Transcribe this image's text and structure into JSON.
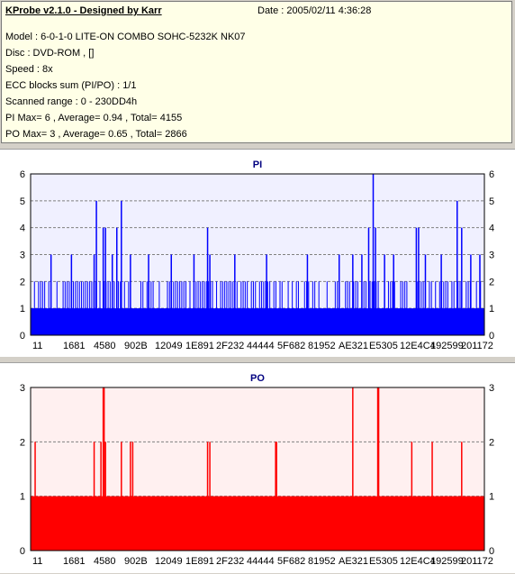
{
  "header": {
    "title": "KProbe v2.1.0 - Designed by Karr",
    "date": "Date : 2005/02/11 4:36:28",
    "lines": [
      "Model : 6-0-1-0 LITE-ON COMBO SOHC-5232K NK07",
      "Disc : DVD-ROM ,  []",
      "Speed : 8x",
      "ECC blocks sum (PI/PO) : 1/1",
      "Scanned range : 0 - 230DD4h",
      "PI Max= 6 , Average= 0.94 , Total= 4155",
      "PO Max= 3 , Average= 0.65 , Total= 2866"
    ]
  },
  "chart_data": [
    {
      "type": "bar",
      "title": "PI",
      "color": "#0000ff",
      "ylim": [
        0,
        6
      ],
      "yticks": [
        0,
        1,
        2,
        3,
        4,
        5,
        6
      ],
      "grid": true,
      "x_ticks": [
        "11",
        "1681",
        "4580",
        "902B",
        "12049",
        "1E891",
        "2F232",
        "44444",
        "5F682",
        "81952",
        "AE321",
        "E5305",
        "12E4C4",
        "192599",
        "201172"
      ],
      "baseline": 1,
      "base_band": 2,
      "spikes": [
        {
          "x": 0.045,
          "v": 3
        },
        {
          "x": 0.09,
          "v": 3
        },
        {
          "x": 0.14,
          "v": 3
        },
        {
          "x": 0.145,
          "v": 5
        },
        {
          "x": 0.16,
          "v": 4
        },
        {
          "x": 0.165,
          "v": 4
        },
        {
          "x": 0.18,
          "v": 3
        },
        {
          "x": 0.19,
          "v": 4
        },
        {
          "x": 0.2,
          "v": 5
        },
        {
          "x": 0.22,
          "v": 3
        },
        {
          "x": 0.26,
          "v": 3
        },
        {
          "x": 0.31,
          "v": 3
        },
        {
          "x": 0.36,
          "v": 3
        },
        {
          "x": 0.39,
          "v": 4
        },
        {
          "x": 0.395,
          "v": 3
        },
        {
          "x": 0.45,
          "v": 3
        },
        {
          "x": 0.52,
          "v": 3
        },
        {
          "x": 0.61,
          "v": 3
        },
        {
          "x": 0.68,
          "v": 3
        },
        {
          "x": 0.71,
          "v": 3
        },
        {
          "x": 0.73,
          "v": 3
        },
        {
          "x": 0.745,
          "v": 4
        },
        {
          "x": 0.755,
          "v": 6
        },
        {
          "x": 0.76,
          "v": 4
        },
        {
          "x": 0.78,
          "v": 3
        },
        {
          "x": 0.8,
          "v": 3
        },
        {
          "x": 0.85,
          "v": 4
        },
        {
          "x": 0.855,
          "v": 4
        },
        {
          "x": 0.87,
          "v": 3
        },
        {
          "x": 0.905,
          "v": 3
        },
        {
          "x": 0.94,
          "v": 5
        },
        {
          "x": 0.95,
          "v": 4
        },
        {
          "x": 0.97,
          "v": 3
        },
        {
          "x": 0.99,
          "v": 3
        }
      ]
    },
    {
      "type": "bar",
      "title": "PO",
      "color": "#ff0000",
      "ylim": [
        0,
        3
      ],
      "yticks": [
        0,
        1,
        2,
        3
      ],
      "grid": true,
      "x_ticks": [
        "11",
        "1681",
        "4580",
        "902B",
        "12049",
        "1E891",
        "2F232",
        "44444",
        "5F682",
        "81952",
        "AE321",
        "E5305",
        "12E4C4",
        "192599",
        "201172"
      ],
      "baseline": 1,
      "spikes": [
        {
          "x": 0.01,
          "v": 2
        },
        {
          "x": 0.14,
          "v": 2
        },
        {
          "x": 0.155,
          "v": 2
        },
        {
          "x": 0.16,
          "v": 3
        },
        {
          "x": 0.162,
          "v": 3
        },
        {
          "x": 0.165,
          "v": 2
        },
        {
          "x": 0.2,
          "v": 2
        },
        {
          "x": 0.22,
          "v": 2
        },
        {
          "x": 0.225,
          "v": 2
        },
        {
          "x": 0.39,
          "v": 2
        },
        {
          "x": 0.395,
          "v": 2
        },
        {
          "x": 0.54,
          "v": 2
        },
        {
          "x": 0.542,
          "v": 2
        },
        {
          "x": 0.71,
          "v": 3
        },
        {
          "x": 0.765,
          "v": 3
        },
        {
          "x": 0.767,
          "v": 3
        },
        {
          "x": 0.84,
          "v": 2
        },
        {
          "x": 0.885,
          "v": 2
        },
        {
          "x": 0.95,
          "v": 2
        }
      ]
    }
  ]
}
